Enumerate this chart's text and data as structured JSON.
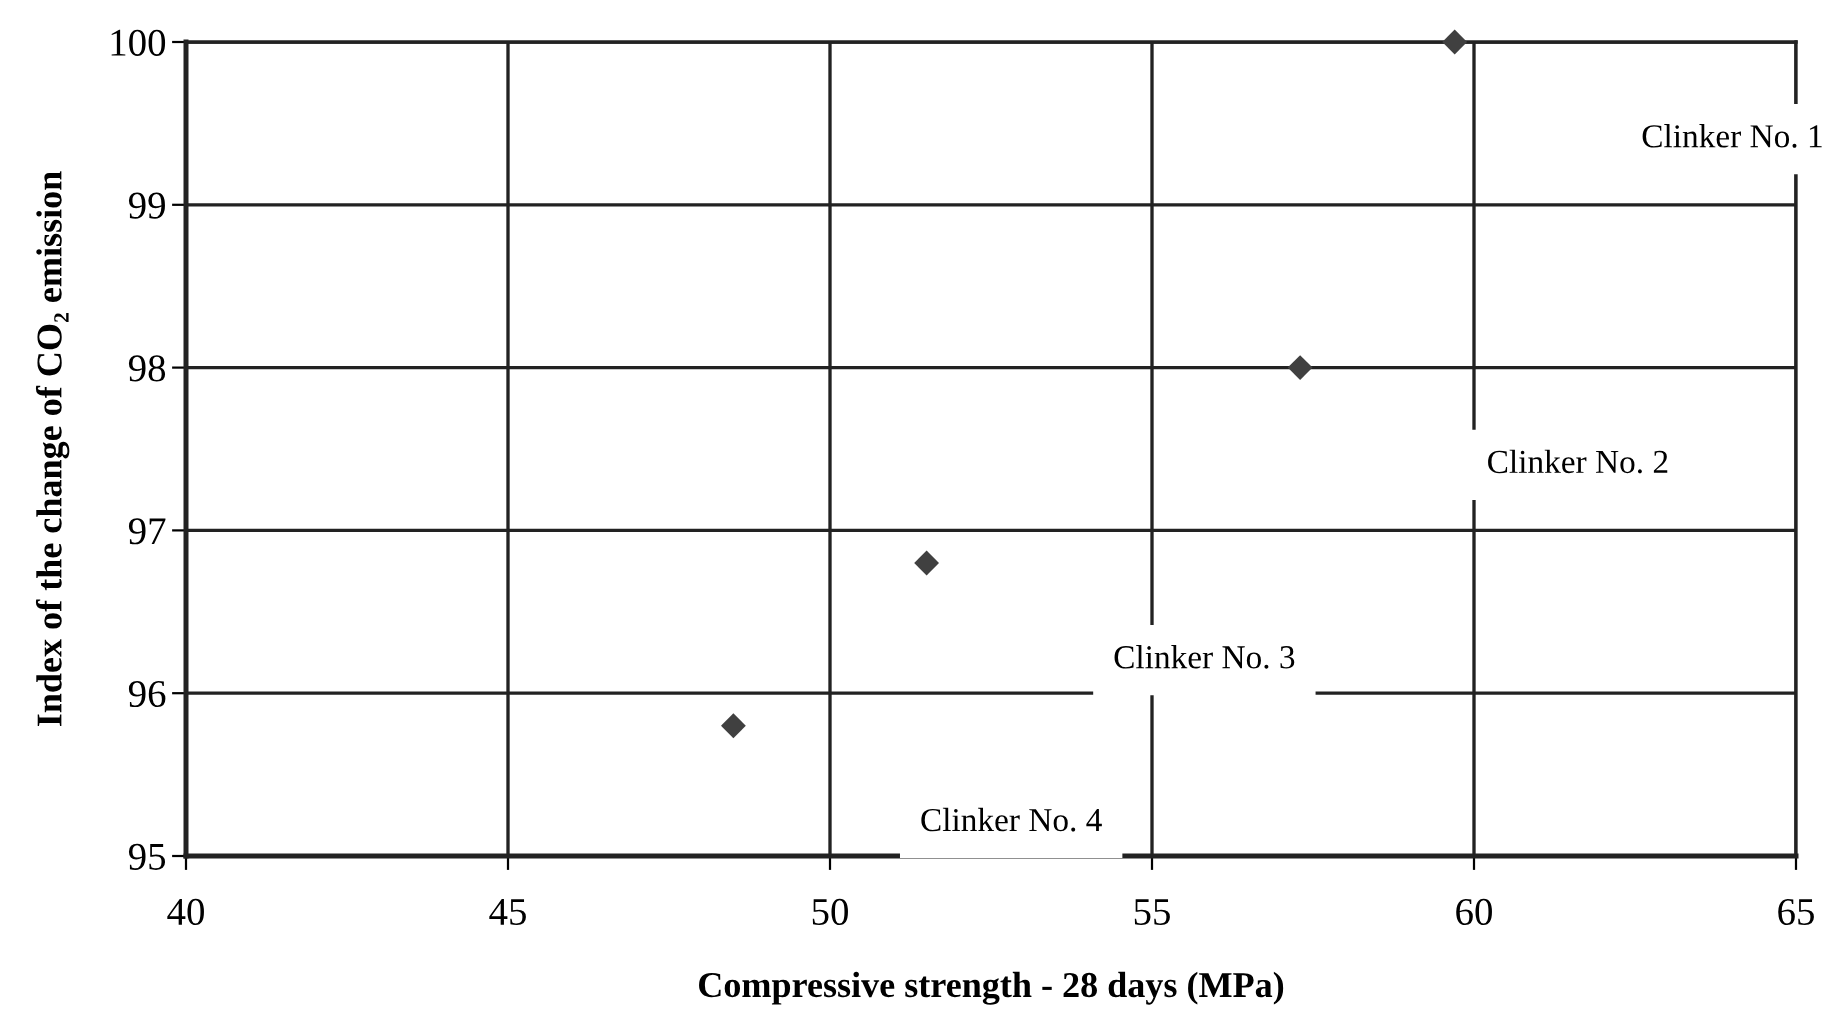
{
  "chart_data": {
    "type": "scatter",
    "xlabel": "Compressive strength - 28 days (MPa)",
    "ylabel": "Index of the change of CO₂ emission",
    "x": [
      59.7,
      57.3,
      51.5,
      48.5
    ],
    "series": [
      {
        "color": "#404040",
        "values": [
          100,
          98,
          96.8,
          95.8
        ]
      }
    ],
    "marker": "diamond",
    "xlim": [
      40,
      65
    ],
    "xticks": [
      40,
      45,
      50,
      55,
      60,
      65
    ],
    "ylim": [
      95,
      100
    ],
    "yticks": [
      95,
      96,
      97,
      98,
      99,
      100
    ],
    "grid": true,
    "annotations": [
      "Clinker No. 1",
      "Clinker No. 2",
      "Clinker No. 3",
      "Clinker No. 4"
    ]
  }
}
